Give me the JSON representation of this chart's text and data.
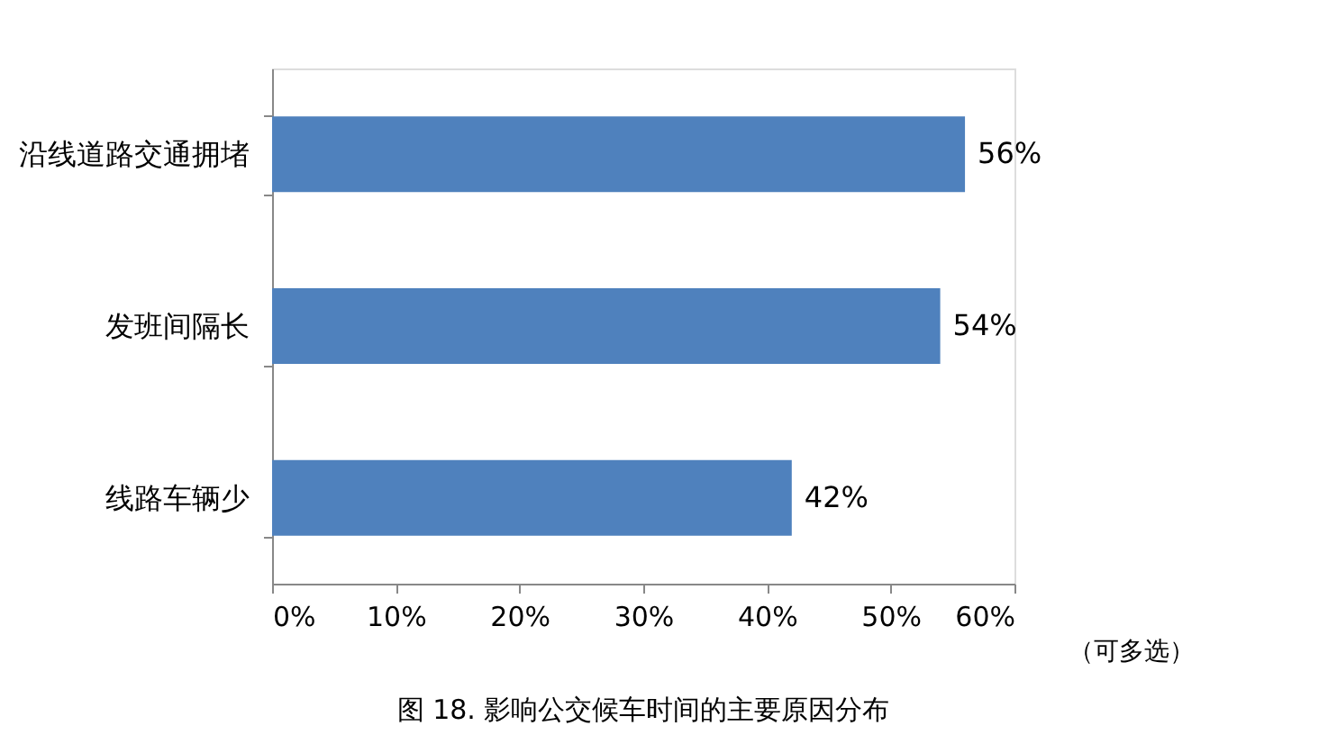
{
  "chart_data": {
    "type": "bar",
    "orientation": "horizontal",
    "title": "图 18. 影响公交候车时间的主要原因分布",
    "annotations": [
      "（可多选）"
    ],
    "categories": [
      "沿线道路交通拥堵",
      "发班间隔长",
      "线路车辆少"
    ],
    "values": [
      56,
      54,
      42
    ],
    "color": "#4f81bd",
    "value_labels": [
      "56%",
      "54%",
      "42%"
    ],
    "xlim": [
      0,
      60
    ],
    "xticks": [
      {
        "value": 0,
        "label": "0%"
      },
      {
        "value": 10,
        "label": "10%"
      },
      {
        "value": 20,
        "label": "20%"
      },
      {
        "value": 30,
        "label": "30%"
      },
      {
        "value": 40,
        "label": "40%"
      },
      {
        "value": 50,
        "label": "50%"
      },
      {
        "value": 60,
        "label": "60%"
      }
    ],
    "grid": false
  }
}
